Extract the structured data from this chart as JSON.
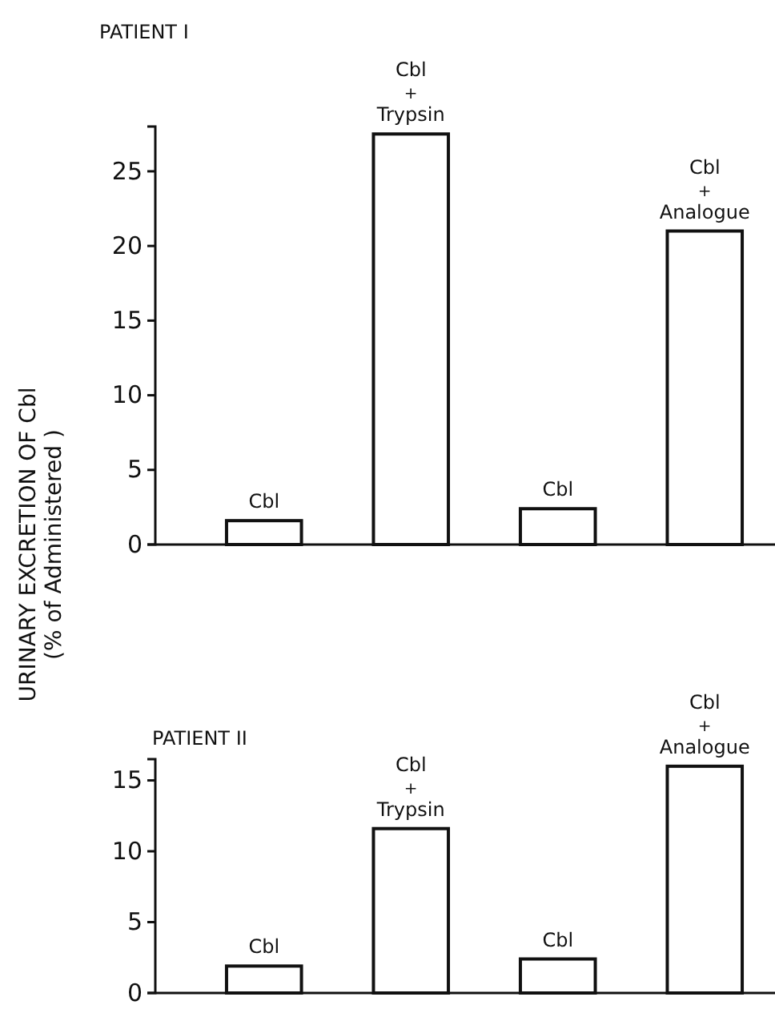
{
  "chart_data": [
    {
      "type": "bar",
      "title": "PATIENT I",
      "ylabel": "URINARY  EXCRETION OF Cbl\n(% of Administered )",
      "categories": [
        "Cbl",
        "Cbl\n+\nTrypsin",
        "Cbl",
        "Cbl\n+\nAnalogue"
      ],
      "values": [
        1.6,
        27.5,
        2.4,
        21.0
      ],
      "color": "#ffffff",
      "ylim": [
        0,
        28
      ],
      "yticks": [
        0,
        5,
        10,
        15,
        20,
        25
      ]
    },
    {
      "type": "bar",
      "title": "PATIENT II",
      "categories": [
        "Cbl",
        "Cbl\n+\nTrypsin",
        "Cbl",
        "Cbl\n+\nAnalogue"
      ],
      "values": [
        1.9,
        11.6,
        2.4,
        16.0
      ],
      "color": "#ffffff",
      "ylim": [
        0,
        16.5
      ],
      "yticks": [
        0,
        5,
        10,
        15
      ]
    }
  ]
}
